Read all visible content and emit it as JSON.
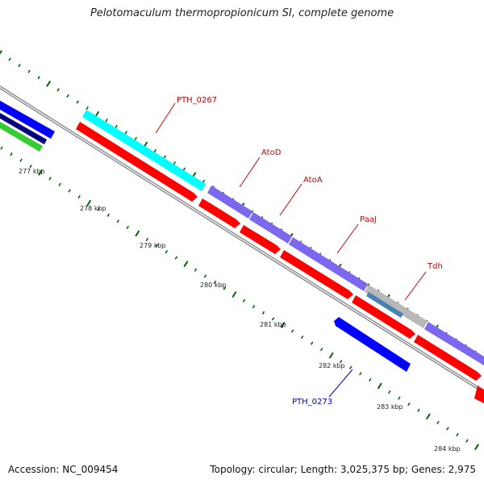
{
  "title": "Pelotomaculum thermopropionicum SI, complete genome",
  "accession_label": "Accession: NC_009454",
  "summary": "Topology: circular; Length: 3,025,375 bp; Genes: 2,975",
  "colors": {
    "backbone": "#8a8a8a",
    "cds_red": "#ff0000",
    "cds_blue": "#0000ff",
    "cds_cyan": "#00ffff",
    "cds_purple": "#7b68ee",
    "cds_grey": "#b8b8b8",
    "cds_steel": "#4682b4",
    "cds_navy": "#000080",
    "cds_green": "#33cc33",
    "tick_green": "#006400",
    "label_red": "#cc0000",
    "label_blue": "#0000cc"
  },
  "kbp_labels": [
    "277 kbp",
    "278 kbp",
    "279 kbp",
    "280 kbp",
    "281 kbp",
    "282 kbp",
    "283 kbp",
    "284 kbp"
  ],
  "gene_labels": [
    {
      "text": "PTH_0267",
      "color": "red"
    },
    {
      "text": "AtoD",
      "color": "red"
    },
    {
      "text": "AtoA",
      "color": "red"
    },
    {
      "text": "PaaJ",
      "color": "red"
    },
    {
      "text": "Tdh",
      "color": "red"
    },
    {
      "text": "PTH_0273",
      "color": "blue"
    }
  ]
}
